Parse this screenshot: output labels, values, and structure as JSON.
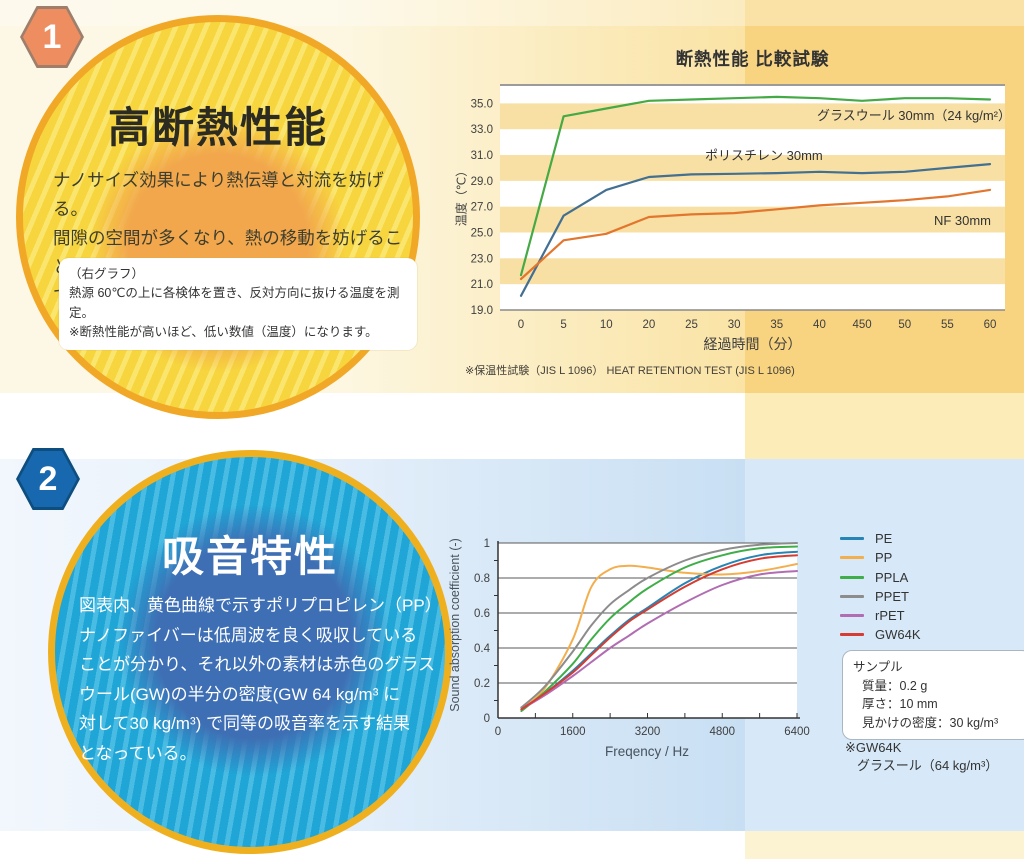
{
  "section1": {
    "badge": "1",
    "title": "高断熱性能",
    "body_lines": [
      "ナノサイズ効果により熱伝導と対流を妨げる。",
      "間隙の空間が多くなり、熱の移動を妨げること",
      "で高い断熱効果が実現。"
    ],
    "note_lines": [
      "（右グラフ）",
      "熱源 60℃の上に各検体を置き、反対方向に抜ける温度を測定。",
      "※断熱性能が高いほど、低い数値（温度）になります。"
    ]
  },
  "section2": {
    "badge": "2",
    "title": "吸音特性",
    "body_lines": [
      "図表内、黄色曲線で示すポリプロピレン（PP）",
      "ナノファイバーは低周波を良く吸収している",
      "ことが分かり、それ以外の素材は赤色のグラス",
      "ウール(GW)の半分の密度(GW 64 kg/m³ に",
      "対して30 kg/m³) で同等の吸音率を示す結果",
      "となっている。"
    ]
  },
  "chart_data": [
    {
      "type": "line",
      "title": "断熱性能 比較試験",
      "xlabel": "経過時間（分）",
      "ylabel": "温度（℃）",
      "x_tick_labels": [
        "0",
        "5",
        "10",
        "20",
        "25",
        "30",
        "35",
        "40",
        "450",
        "50",
        "55",
        "60"
      ],
      "y_ticks": [
        35.0,
        33.0,
        31.0,
        29.0,
        27.0,
        25.0,
        23.0,
        21.0,
        19.0
      ],
      "ylim": [
        19.0,
        36.5
      ],
      "grid": "striped-bands",
      "band_ranges": [
        [
          33,
          35
        ],
        [
          29,
          31
        ],
        [
          25,
          27
        ],
        [
          21,
          23
        ]
      ],
      "band_color": "#F8E0A4",
      "legend_position": "inline-labels",
      "series": [
        {
          "name": "グラスウール 30mm（24 kg/m²）",
          "color": "#45A945",
          "values": [
            21.7,
            34.0,
            34.6,
            35.2,
            35.3,
            35.4,
            35.5,
            35.4,
            35.2,
            35.4,
            35.4,
            35.3
          ],
          "label_anchor": "end",
          "label_x": 551,
          "label_y": 44
        },
        {
          "name": "ポリスチレン 30mm",
          "color": "#426F92",
          "values": [
            20.1,
            26.3,
            28.3,
            29.3,
            29.5,
            29.55,
            29.6,
            29.7,
            29.6,
            29.7,
            30.0,
            30.3
          ],
          "label_anchor": "start",
          "label_x": 245,
          "label_y": 84
        },
        {
          "name": "NF 30mm",
          "color": "#E2762E",
          "values": [
            21.4,
            24.4,
            24.9,
            26.2,
            26.4,
            26.5,
            26.8,
            27.1,
            27.3,
            27.5,
            27.8,
            28.3
          ],
          "label_anchor": "end",
          "label_x": 531,
          "label_y": 149
        }
      ],
      "footnote": "※保温性試験（JIS L 1096） HEAT RETENTION TEST (JIS L 1096)"
    },
    {
      "type": "line",
      "xlabel": "Freqency / Hz",
      "ylabel": "Sound absorption coefficient (-)",
      "x": [
        500,
        1000,
        1600,
        2000,
        2400,
        2800,
        3200,
        4000,
        4800,
        5600,
        6400
      ],
      "xlim": [
        0,
        6400
      ],
      "x_ticks": [
        0,
        1600,
        3200,
        4800,
        6400
      ],
      "x_minor_step": 800,
      "ylim": [
        0,
        1
      ],
      "y_ticks": [
        0,
        0.2,
        0.4,
        0.6,
        0.8,
        1
      ],
      "y_minor_step": 0.1,
      "grid": "horizontal",
      "legend_position": "right",
      "series": [
        {
          "name": "PE",
          "color": "#2585B5",
          "values": [
            0.06,
            0.14,
            0.27,
            0.37,
            0.47,
            0.56,
            0.63,
            0.77,
            0.87,
            0.93,
            0.95
          ]
        },
        {
          "name": "PP",
          "color": "#F3AE4E",
          "values": [
            0.05,
            0.17,
            0.45,
            0.75,
            0.85,
            0.87,
            0.86,
            0.83,
            0.82,
            0.84,
            0.88
          ]
        },
        {
          "name": "PPLA",
          "color": "#3FAE49",
          "values": [
            0.04,
            0.15,
            0.31,
            0.45,
            0.57,
            0.66,
            0.74,
            0.86,
            0.93,
            0.97,
            0.98
          ]
        },
        {
          "name": "PPET",
          "color": "#8C8C8C",
          "values": [
            0.06,
            0.18,
            0.38,
            0.53,
            0.65,
            0.73,
            0.8,
            0.9,
            0.96,
            0.99,
            1.0
          ]
        },
        {
          "name": "rPET",
          "color": "#B16CB2",
          "values": [
            0.05,
            0.13,
            0.24,
            0.32,
            0.4,
            0.47,
            0.54,
            0.66,
            0.76,
            0.82,
            0.84
          ]
        },
        {
          "name": "GW64K",
          "color": "#D63C31",
          "values": [
            0.05,
            0.14,
            0.26,
            0.36,
            0.46,
            0.55,
            0.62,
            0.75,
            0.85,
            0.91,
            0.93
          ]
        }
      ],
      "sample_box": {
        "title": "サンプル",
        "lines": [
          "質量：0.2 g",
          "厚さ：10 mm",
          "見かけの密度：30 kg/m³"
        ]
      },
      "footnote_lines": [
        "※GW64K",
        "グラスール（64 kg/m³）"
      ]
    }
  ]
}
